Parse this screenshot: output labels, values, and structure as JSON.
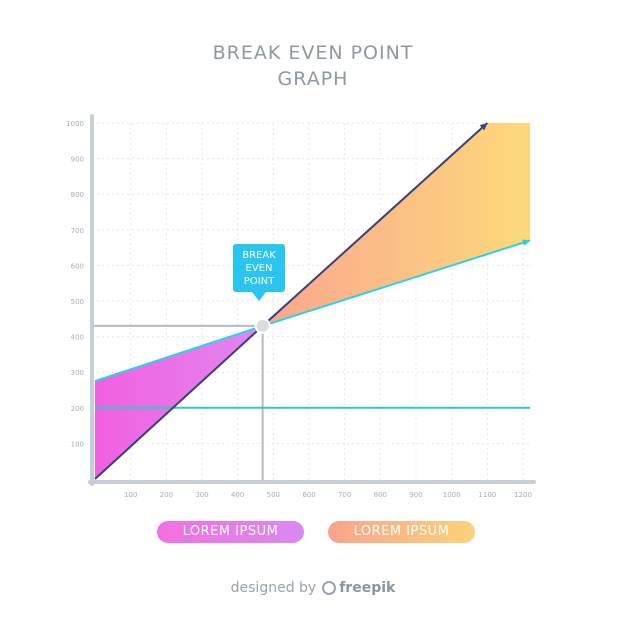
{
  "title": {
    "line1": "BREAK EVEN POINT",
    "line2": "GRAPH"
  },
  "callout": {
    "line1": "BREAK",
    "line2": "EVEN",
    "line3": "POINT"
  },
  "legend": [
    "LOREM IPSUM",
    "LOREM IPSUM"
  ],
  "footer": {
    "text": "designed by",
    "brand": "freepik"
  },
  "colors": {
    "fixed": "#2ec9c1",
    "revenue": "#3b3f7a",
    "total_cost_upper": "#2bd3e0",
    "loss_area": "#f46fe0",
    "profit_area": "#fbc07a",
    "callout": "#29c4f0"
  },
  "chart_data": {
    "type": "line",
    "x_ticks": [
      100,
      200,
      300,
      400,
      500,
      600,
      700,
      800,
      900,
      1000,
      1100,
      1200
    ],
    "y_ticks": [
      100,
      200,
      300,
      400,
      500,
      600,
      700,
      800,
      900,
      1000
    ],
    "xlim": [
      0,
      1200
    ],
    "ylim": [
      0,
      1000
    ],
    "grid": true,
    "break_even": {
      "x": 470,
      "y": 430
    },
    "series": [
      {
        "key": "fixed",
        "points": [
          [
            0,
            200
          ],
          [
            1220,
            200
          ]
        ]
      },
      {
        "key": "cost",
        "points": [
          [
            0,
            275
          ],
          [
            470,
            430
          ],
          [
            1220,
            670
          ]
        ]
      },
      {
        "key": "revenue",
        "points": [
          [
            0,
            0
          ],
          [
            470,
            430
          ],
          [
            1100,
            1000
          ]
        ]
      }
    ],
    "profit_area": [
      [
        470,
        430
      ],
      [
        1100,
        1000
      ],
      [
        1220,
        1000
      ],
      [
        1220,
        670
      ]
    ],
    "loss_area": [
      [
        0,
        0
      ],
      [
        470,
        430
      ],
      [
        0,
        275
      ]
    ]
  }
}
